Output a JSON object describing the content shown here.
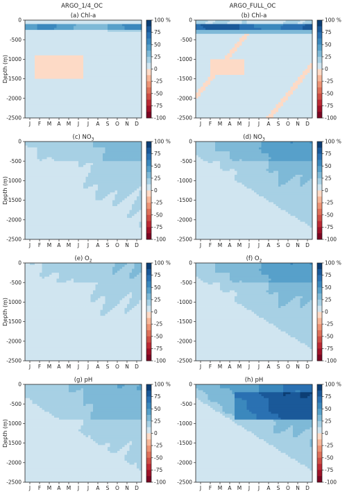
{
  "column_titles": [
    "ARGO_1/4_OC",
    "ARGO_FULL_OC"
  ],
  "chart_data": {
    "type": "heatmap",
    "panel_grid": {
      "rows": 4,
      "cols": 2
    },
    "x": {
      "categories": [
        "J",
        "F",
        "M",
        "A",
        "M",
        "J",
        "J",
        "A",
        "S",
        "O",
        "N",
        "D"
      ]
    },
    "y": {
      "label": "Depth (m)",
      "range": [
        -2500,
        0
      ],
      "ticks": [
        0,
        -500,
        -1000,
        -1500,
        -2000,
        -2500
      ],
      "tick_labels": [
        "0",
        "-500",
        "-1000",
        "-1500",
        "-2000",
        "-2500"
      ]
    },
    "colorbar": {
      "range": [
        -100,
        100
      ],
      "ticks": [
        100,
        75,
        50,
        25,
        0,
        -25,
        -50,
        -75,
        -100
      ],
      "tick_labels": [
        "100 %",
        "75",
        "50",
        "25",
        "0",
        "-25",
        "-50",
        "-75",
        "-100"
      ],
      "colormap": "RdBu",
      "levels": 16
    },
    "panels": [
      {
        "label": "(a) Chl-a",
        "variable": "Chl-a",
        "experiment": "ARGO_1/4_OC"
      },
      {
        "label": "(b) Chl-a",
        "variable": "Chl-a",
        "experiment": "ARGO_FULL_OC"
      },
      {
        "label": "(c) NO",
        "sub": "3",
        "variable": "NO3",
        "experiment": "ARGO_1/4_OC"
      },
      {
        "label": "(d) NO",
        "sub": "3",
        "variable": "NO3",
        "experiment": "ARGO_FULL_OC"
      },
      {
        "label": "(e) O",
        "sub": "2",
        "variable": "O2",
        "experiment": "ARGO_1/4_OC"
      },
      {
        "label": "(f) O",
        "sub": "2",
        "variable": "O2",
        "experiment": "ARGO_FULL_OC"
      },
      {
        "label": "(g) pH",
        "variable": "pH",
        "experiment": "ARGO_1/4_OC"
      },
      {
        "label": "(h) pH",
        "variable": "pH",
        "experiment": "ARGO_FULL_OC"
      }
    ]
  }
}
